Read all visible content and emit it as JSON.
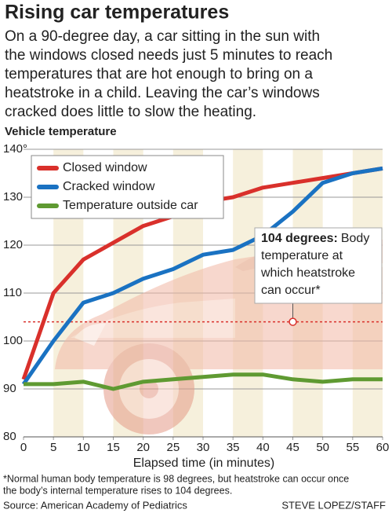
{
  "chart_data": {
    "type": "line",
    "title": "Rising car temperatures",
    "subtitle": [
      "On a 90-degree day, a car sitting in the sun with",
      "the windows closed needs just 5 minutes to reach",
      "temperatures that are hot enough to bring on a",
      "heatstroke in a child. Leaving the car’s windows",
      "cracked does little to slow the heating."
    ],
    "y_label": "Vehicle temperature",
    "x_label": "Elapsed time (in minutes)",
    "x": [
      0,
      5,
      10,
      15,
      20,
      25,
      30,
      35,
      40,
      45,
      50,
      55,
      60
    ],
    "series": [
      {
        "name": "Closed window",
        "color": "#d9302b",
        "values": [
          92,
          110,
          117,
          120.5,
          124,
          126,
          129,
          130,
          132,
          133,
          134,
          135,
          136
        ]
      },
      {
        "name": "Cracked window",
        "color": "#1a72c2",
        "values": [
          91,
          100,
          108,
          110,
          113,
          115,
          118,
          119,
          122,
          127,
          133,
          135,
          136
        ]
      },
      {
        "name": "Temperature outside car",
        "color": "#5f9a32",
        "values": [
          91,
          91,
          91.5,
          90,
          91.5,
          92,
          92.5,
          93,
          93,
          92,
          91.5,
          92,
          92
        ]
      }
    ],
    "xlim": [
      0,
      60
    ],
    "xticks": [
      0,
      5,
      10,
      15,
      20,
      25,
      30,
      35,
      40,
      45,
      50,
      55,
      60
    ],
    "ylim": [
      80,
      140
    ],
    "yticks": [
      80,
      90,
      100,
      110,
      120,
      130,
      {
        "value": 140,
        "label": "140°"
      }
    ],
    "grid": true,
    "legend": "upper left",
    "threshold": {
      "value": 104,
      "marker_x": 45,
      "color": "#d9302b",
      "label_bold": "104 degrees:",
      "label": [
        "Body",
        "temperature at",
        "which heatstroke",
        "can occur*"
      ]
    },
    "footnote": [
      "*Normal human body temperature is 98 degrees, but heatstroke can occur once",
      "the body’s internal temperature rises to 104 degrees."
    ],
    "source": "Source: American Academy of Pediatrics",
    "credit": "STEVE LOPEZ/STAFF"
  }
}
